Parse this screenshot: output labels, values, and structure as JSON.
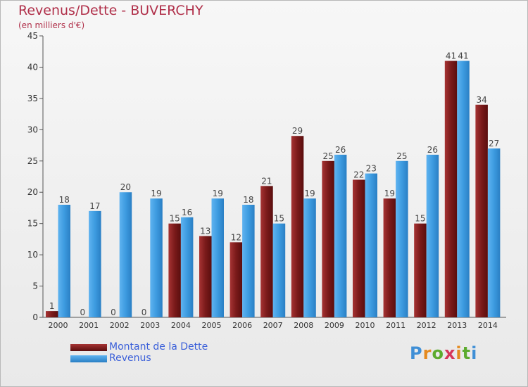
{
  "title": "Revenus/Dette - BUVERCHY",
  "subtitle": "(en milliers d'€)",
  "colors": {
    "debt": "#8a1f1f",
    "revenue": "#3d9be0",
    "title": "#b0304a",
    "legend_text": "#3a5fd9"
  },
  "logo": {
    "text": "Proxiti",
    "letters": [
      "P",
      "r",
      "o",
      "x",
      "i",
      "t",
      "i"
    ]
  },
  "legend": [
    {
      "label": "Montant de la Dette",
      "color": "#7a1a1a"
    },
    {
      "label": "Revenus",
      "color": "#3d9be0"
    }
  ],
  "chart_data": {
    "type": "bar",
    "title": "Revenus/Dette - BUVERCHY",
    "subtitle": "(en milliers d'€)",
    "categories": [
      "2000",
      "2001",
      "2002",
      "2003",
      "2004",
      "2005",
      "2006",
      "2007",
      "2008",
      "2009",
      "2010",
      "2011",
      "2012",
      "2013",
      "2014"
    ],
    "series": [
      {
        "name": "Montant de la Dette",
        "values": [
          1,
          0,
          0,
          0,
          15,
          13,
          12,
          21,
          29,
          25,
          22,
          19,
          15,
          41,
          34
        ]
      },
      {
        "name": "Revenus",
        "values": [
          18,
          17,
          20,
          19,
          16,
          19,
          18,
          15,
          19,
          26,
          23,
          25,
          26,
          41,
          27
        ]
      }
    ],
    "ylim": [
      0,
      45
    ],
    "yticks": [
      0,
      5,
      10,
      15,
      20,
      25,
      30,
      35,
      40,
      45
    ],
    "grid": false,
    "legend_position": "bottom-left"
  }
}
